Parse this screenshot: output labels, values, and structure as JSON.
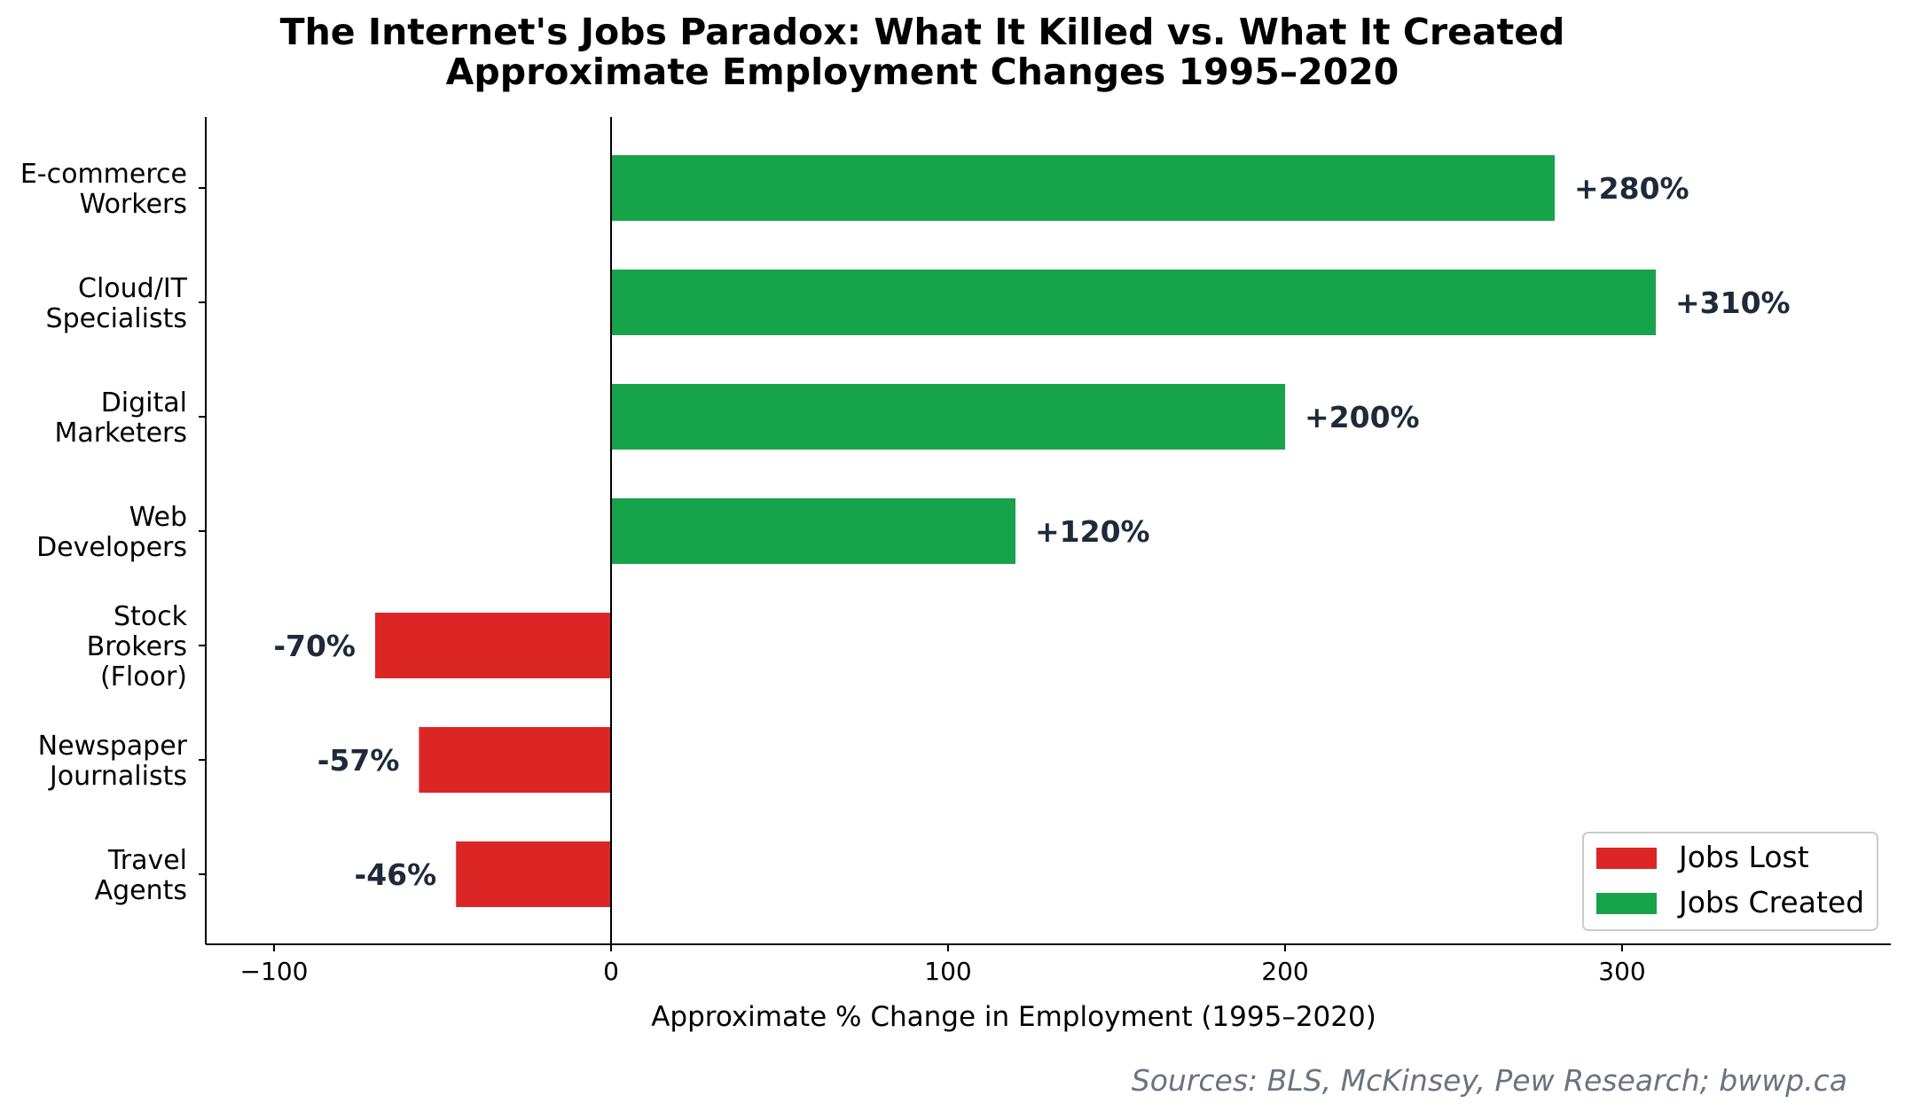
{
  "chart_data": {
    "type": "bar",
    "orientation": "horizontal",
    "title": "The Internet's Jobs Paradox: What It Killed vs. What It Created",
    "subtitle": "Approximate Employment Changes 1995–2020",
    "xlabel": "Approximate % Change in Employment (1995–2020)",
    "ylabel": "",
    "xlim": [
      -120,
      380
    ],
    "xticks": [
      -100,
      0,
      100,
      200,
      300
    ],
    "xtick_labels": [
      "−100",
      "0",
      "100",
      "200",
      "300"
    ],
    "grid": false,
    "legend_position": "bottom-right",
    "categories": [
      [
        "E-commerce",
        "Workers"
      ],
      [
        "Cloud/IT",
        "Specialists"
      ],
      [
        "Digital",
        "Marketers"
      ],
      [
        "Web",
        "Developers"
      ],
      [
        "Stock",
        "Brokers",
        "(Floor)"
      ],
      [
        "Newspaper",
        "Journalists"
      ],
      [
        "Travel",
        "Agents"
      ]
    ],
    "values": [
      280,
      310,
      200,
      120,
      -70,
      -57,
      -46
    ],
    "value_labels": [
      "+280%",
      "+310%",
      "+200%",
      "+120%",
      "-70%",
      "-57%",
      "-46%"
    ],
    "series": [
      {
        "name": "Jobs Lost",
        "color": "#dc2626"
      },
      {
        "name": "Jobs Created",
        "color": "#16a34a"
      }
    ],
    "source": "Sources: BLS, McKinsey, Pew Research; bwwp.ca"
  }
}
